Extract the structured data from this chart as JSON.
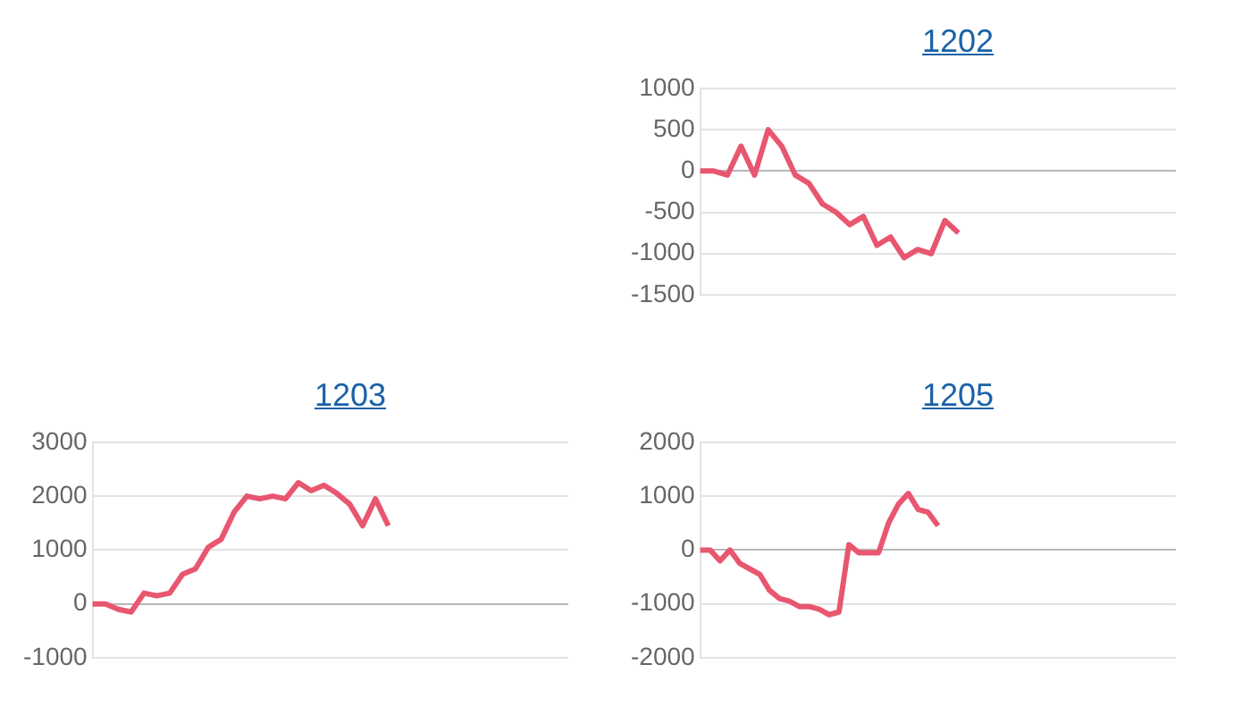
{
  "chart_data": [
    {
      "type": "line",
      "title": "1202",
      "categories": [
        null,
        null,
        null,
        null,
        null,
        null,
        null,
        null,
        null,
        null,
        null,
        null,
        null,
        null,
        null,
        null,
        null,
        null,
        null,
        null,
        null,
        null,
        null,
        null,
        null,
        null,
        null,
        null,
        null,
        null,
        null,
        null,
        null,
        null,
        null,
        null
      ],
      "series": [
        {
          "color": "#e8566f",
          "values": [
            0,
            0,
            -50,
            300,
            -50,
            500,
            300,
            -50,
            -150,
            -400,
            -500,
            -650,
            -550,
            -900,
            -800,
            -1050,
            -950,
            -1000,
            -600,
            -750,
            null,
            null,
            null,
            null,
            null,
            null,
            null,
            null,
            null,
            null,
            null,
            null,
            null,
            null,
            null,
            null
          ]
        }
      ],
      "ylim": [
        -1500,
        1000
      ],
      "yticks": [
        -1500,
        -1000,
        -500,
        0,
        500,
        1000
      ],
      "grid": "y",
      "tick_labels": "y",
      "legend": false,
      "marker": "none"
    },
    {
      "type": "line",
      "title": "1203",
      "categories": [
        null,
        null,
        null,
        null,
        null,
        null,
        null,
        null,
        null,
        null,
        null,
        null,
        null,
        null,
        null,
        null,
        null,
        null,
        null,
        null,
        null,
        null,
        null,
        null,
        null,
        null,
        null,
        null,
        null,
        null,
        null,
        null,
        null,
        null,
        null,
        null,
        null,
        null
      ],
      "series": [
        {
          "color": "#e8566f",
          "values": [
            0,
            0,
            -100,
            -150,
            200,
            150,
            200,
            550,
            650,
            1050,
            1200,
            1700,
            2000,
            1950,
            2000,
            1950,
            2250,
            2100,
            2200,
            2050,
            1850,
            1450,
            1950,
            1450,
            null,
            null,
            null,
            null,
            null,
            null,
            null,
            null,
            null,
            null,
            null,
            null,
            null,
            null
          ]
        }
      ],
      "ylim": [
        -1000,
        3000
      ],
      "yticks": [
        -1000,
        0,
        1000,
        2000,
        3000
      ],
      "grid": "y",
      "tick_labels": "y",
      "legend": false,
      "marker": "none"
    },
    {
      "type": "line",
      "title": "1205",
      "categories": [
        null,
        null,
        null,
        null,
        null,
        null,
        null,
        null,
        null,
        null,
        null,
        null,
        null,
        null,
        null,
        null,
        null,
        null,
        null,
        null,
        null,
        null,
        null,
        null,
        null,
        null,
        null,
        null,
        null,
        null,
        null,
        null,
        null,
        null,
        null,
        null,
        null,
        null,
        null,
        null,
        null,
        null,
        null,
        null,
        null,
        null,
        null,
        null,
        null
      ],
      "series": [
        {
          "color": "#e8566f",
          "values": [
            0,
            0,
            -200,
            0,
            -250,
            -350,
            -450,
            -750,
            -900,
            -950,
            -1050,
            -1050,
            -1100,
            -1200,
            -1150,
            100,
            -50,
            -50,
            -50,
            500,
            850,
            1050,
            750,
            700,
            450,
            null,
            null,
            null,
            null,
            null,
            null,
            null,
            null,
            null,
            null,
            null,
            null,
            null,
            null,
            null,
            null,
            null,
            null,
            null,
            null,
            null,
            null,
            null,
            null
          ]
        }
      ],
      "ylim": [
        -2000,
        2000
      ],
      "yticks": [
        -2000,
        -1000,
        0,
        1000,
        2000
      ],
      "grid": "y",
      "tick_labels": "y",
      "legend": false,
      "marker": "none"
    }
  ]
}
